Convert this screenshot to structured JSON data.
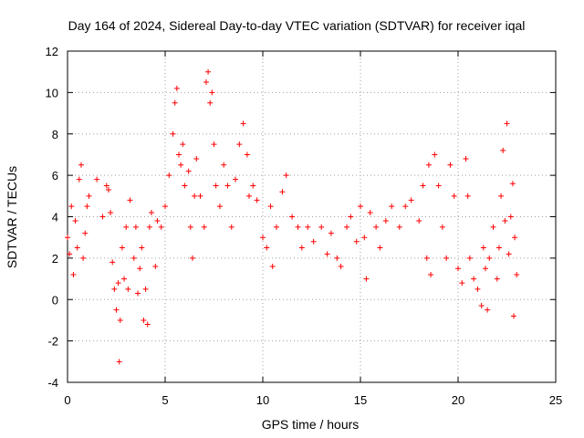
{
  "chart_data": {
    "type": "scatter",
    "title": "Day 164 of 2024, Sidereal Day-to-day VTEC variation (SDTVAR) for receiver iqal",
    "xlabel": "GPS time / hours",
    "ylabel": "SDTVAR / TECUs",
    "xlim": [
      0,
      25
    ],
    "ylim": [
      -4,
      12
    ],
    "x_ticks": [
      0,
      5,
      10,
      15,
      20,
      25
    ],
    "y_ticks": [
      -4,
      -2,
      0,
      2,
      4,
      6,
      8,
      10,
      12
    ],
    "grid": true,
    "marker": "+",
    "color": "#ff0000",
    "series": [
      {
        "name": "iqal",
        "points": [
          [
            0.0,
            3.0
          ],
          [
            0.1,
            2.2
          ],
          [
            0.2,
            4.5
          ],
          [
            0.3,
            1.2
          ],
          [
            0.4,
            3.8
          ],
          [
            0.5,
            2.5
          ],
          [
            0.6,
            5.8
          ],
          [
            0.7,
            6.5
          ],
          [
            0.8,
            2.0
          ],
          [
            0.9,
            3.2
          ],
          [
            1.0,
            4.5
          ],
          [
            1.1,
            5.0
          ],
          [
            1.5,
            5.8
          ],
          [
            1.8,
            4.0
          ],
          [
            2.0,
            5.5
          ],
          [
            2.1,
            5.3
          ],
          [
            2.2,
            4.2
          ],
          [
            2.3,
            1.8
          ],
          [
            2.4,
            0.5
          ],
          [
            2.5,
            -0.5
          ],
          [
            2.6,
            0.8
          ],
          [
            2.65,
            -3.0
          ],
          [
            2.7,
            -1.0
          ],
          [
            2.8,
            2.5
          ],
          [
            2.9,
            1.0
          ],
          [
            3.0,
            3.5
          ],
          [
            3.1,
            0.5
          ],
          [
            3.2,
            4.8
          ],
          [
            3.4,
            2.0
          ],
          [
            3.5,
            3.5
          ],
          [
            3.6,
            0.3
          ],
          [
            3.7,
            1.5
          ],
          [
            3.8,
            2.5
          ],
          [
            3.9,
            -1.0
          ],
          [
            4.0,
            0.5
          ],
          [
            4.1,
            -1.2
          ],
          [
            4.2,
            3.5
          ],
          [
            4.3,
            4.2
          ],
          [
            4.5,
            1.6
          ],
          [
            4.6,
            3.8
          ],
          [
            4.8,
            3.5
          ],
          [
            5.0,
            4.5
          ],
          [
            5.2,
            6.0
          ],
          [
            5.4,
            8.0
          ],
          [
            5.5,
            9.5
          ],
          [
            5.6,
            10.2
          ],
          [
            5.7,
            7.0
          ],
          [
            5.8,
            6.5
          ],
          [
            5.9,
            7.5
          ],
          [
            6.0,
            5.5
          ],
          [
            6.2,
            6.2
          ],
          [
            6.3,
            3.5
          ],
          [
            6.4,
            2.0
          ],
          [
            6.5,
            5.0
          ],
          [
            6.6,
            6.8
          ],
          [
            6.8,
            5.0
          ],
          [
            7.0,
            3.5
          ],
          [
            7.1,
            10.5
          ],
          [
            7.2,
            11.0
          ],
          [
            7.3,
            9.5
          ],
          [
            7.4,
            10.0
          ],
          [
            7.5,
            7.5
          ],
          [
            7.6,
            5.5
          ],
          [
            7.8,
            4.5
          ],
          [
            8.0,
            6.5
          ],
          [
            8.2,
            5.5
          ],
          [
            8.4,
            3.5
          ],
          [
            8.6,
            5.8
          ],
          [
            8.8,
            7.5
          ],
          [
            9.0,
            8.5
          ],
          [
            9.2,
            7.0
          ],
          [
            9.3,
            5.0
          ],
          [
            9.5,
            5.5
          ],
          [
            9.7,
            4.8
          ],
          [
            10.0,
            3.0
          ],
          [
            10.2,
            2.5
          ],
          [
            10.4,
            4.5
          ],
          [
            10.5,
            1.6
          ],
          [
            10.7,
            3.5
          ],
          [
            11.0,
            5.2
          ],
          [
            11.2,
            6.0
          ],
          [
            11.5,
            4.0
          ],
          [
            11.8,
            3.5
          ],
          [
            12.0,
            2.5
          ],
          [
            12.3,
            3.5
          ],
          [
            12.6,
            2.8
          ],
          [
            13.0,
            3.5
          ],
          [
            13.3,
            2.2
          ],
          [
            13.5,
            3.2
          ],
          [
            13.8,
            2.0
          ],
          [
            14.0,
            1.6
          ],
          [
            14.3,
            3.5
          ],
          [
            14.5,
            4.0
          ],
          [
            14.8,
            2.8
          ],
          [
            15.0,
            4.5
          ],
          [
            15.2,
            3.0
          ],
          [
            15.3,
            1.0
          ],
          [
            15.5,
            4.2
          ],
          [
            15.8,
            3.5
          ],
          [
            16.0,
            2.5
          ],
          [
            16.3,
            3.8
          ],
          [
            16.6,
            4.5
          ],
          [
            17.0,
            3.5
          ],
          [
            17.3,
            4.5
          ],
          [
            17.6,
            4.8
          ],
          [
            18.0,
            3.8
          ],
          [
            18.2,
            5.5
          ],
          [
            18.4,
            2.0
          ],
          [
            18.5,
            6.5
          ],
          [
            18.6,
            1.2
          ],
          [
            18.8,
            7.0
          ],
          [
            19.0,
            5.5
          ],
          [
            19.2,
            3.5
          ],
          [
            19.4,
            2.0
          ],
          [
            19.6,
            6.5
          ],
          [
            19.8,
            5.0
          ],
          [
            20.0,
            1.5
          ],
          [
            20.2,
            0.8
          ],
          [
            20.4,
            6.8
          ],
          [
            20.5,
            5.0
          ],
          [
            20.6,
            2.0
          ],
          [
            20.8,
            1.0
          ],
          [
            21.0,
            0.5
          ],
          [
            21.2,
            -0.3
          ],
          [
            21.3,
            2.5
          ],
          [
            21.4,
            1.5
          ],
          [
            21.5,
            -0.5
          ],
          [
            21.6,
            2.0
          ],
          [
            21.8,
            3.5
          ],
          [
            22.0,
            1.0
          ],
          [
            22.1,
            2.5
          ],
          [
            22.2,
            5.0
          ],
          [
            22.3,
            7.2
          ],
          [
            22.4,
            3.8
          ],
          [
            22.5,
            8.5
          ],
          [
            22.6,
            2.2
          ],
          [
            22.7,
            4.0
          ],
          [
            22.8,
            5.6
          ],
          [
            22.85,
            -0.8
          ],
          [
            22.9,
            3.0
          ],
          [
            23.0,
            1.2
          ]
        ]
      }
    ]
  }
}
